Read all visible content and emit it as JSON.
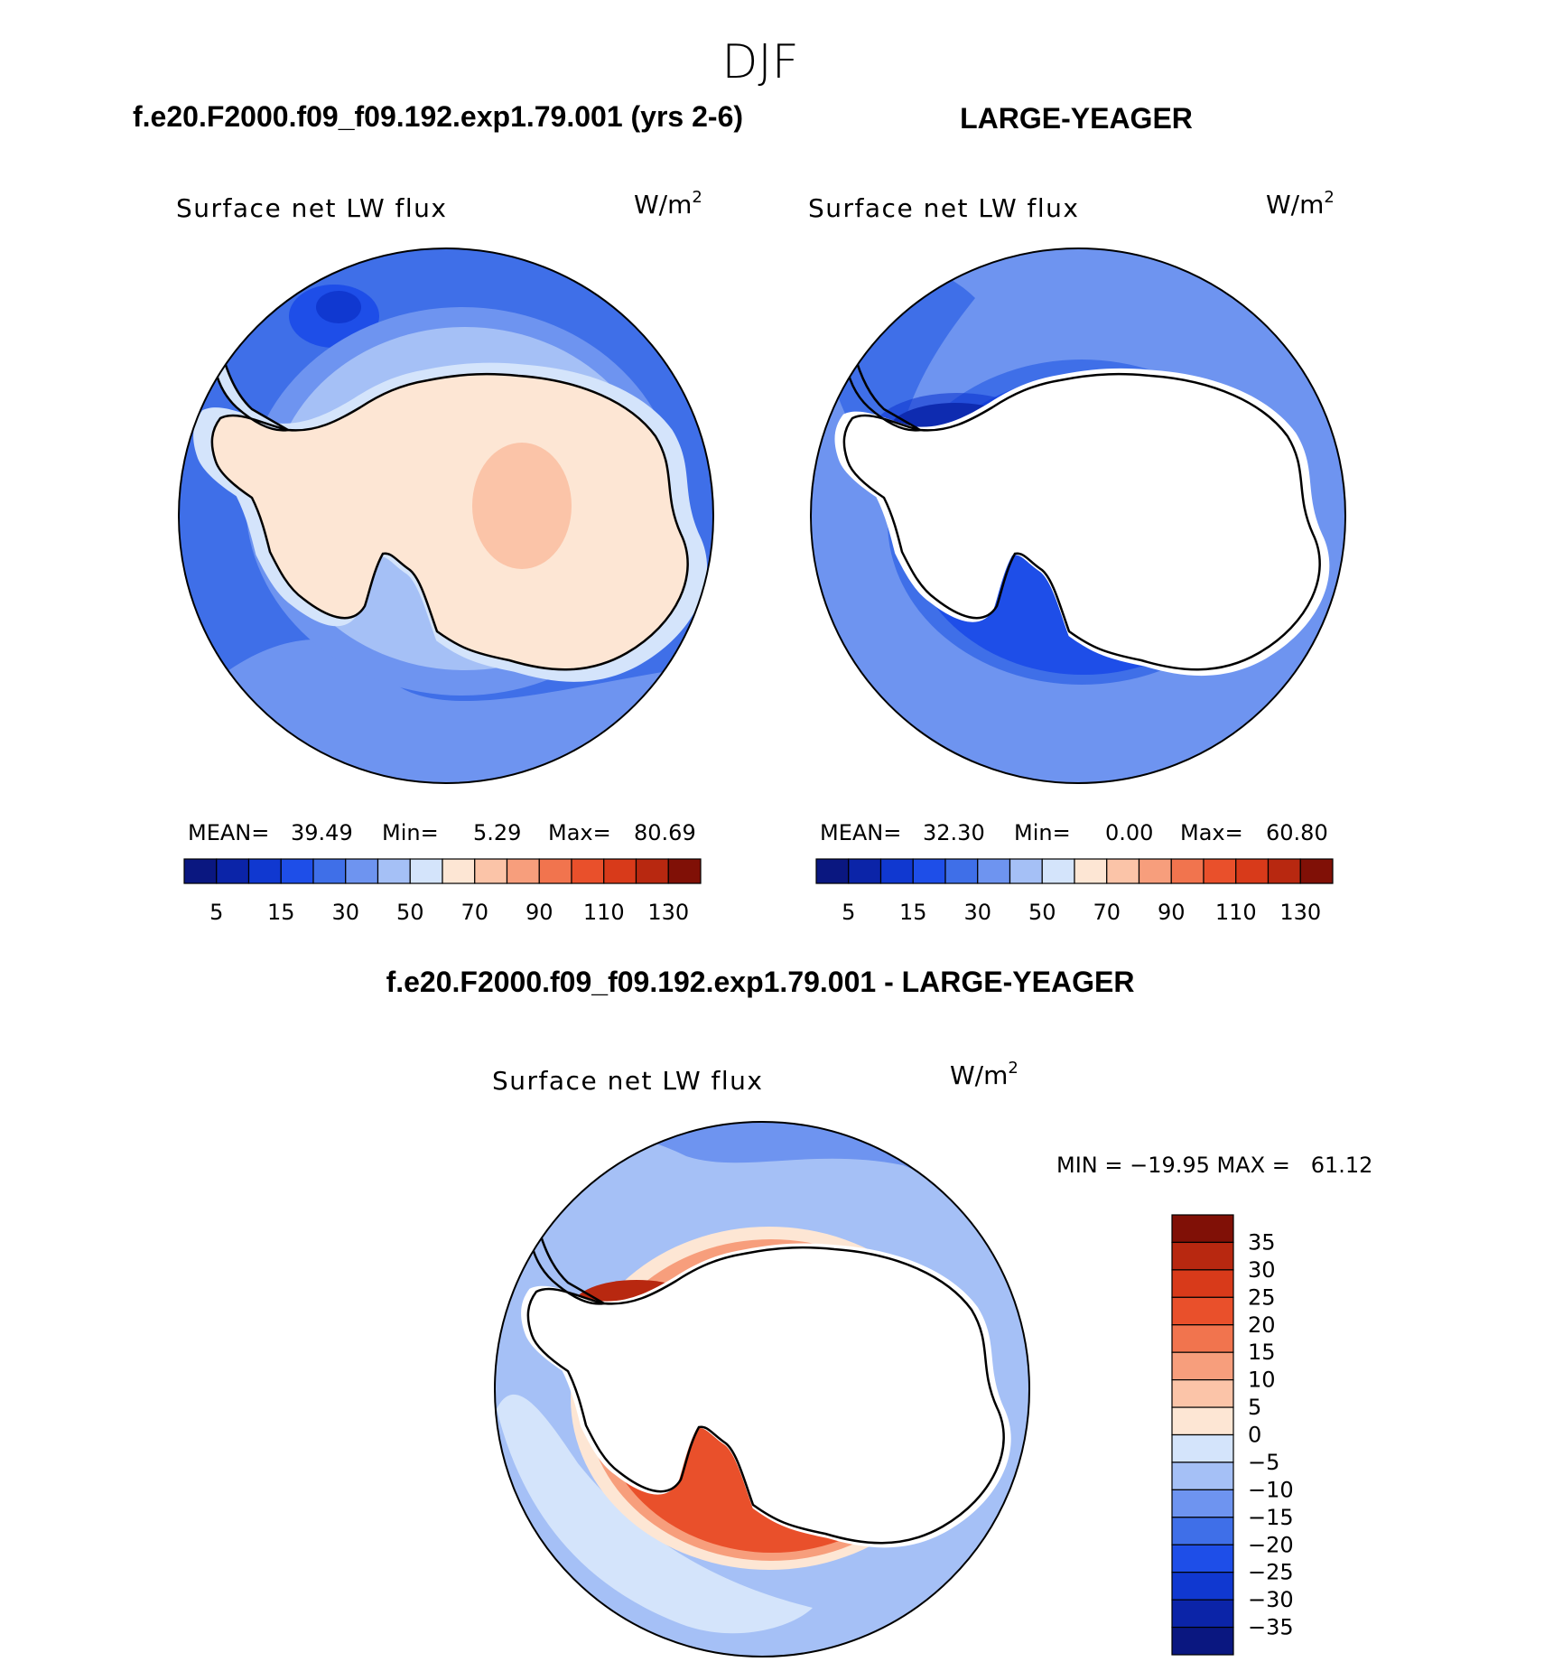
{
  "figure": {
    "season": "DJF",
    "left_case": "f.e20.F2000.f09_f09.192.exp1.79.001 (yrs 2-6)",
    "right_case": "LARGE-YEAGER",
    "diff_title": "f.e20.F2000.f09_f09.192.exp1.79.001 - LARGE-YEAGER"
  },
  "panels": [
    {
      "id": "model",
      "variable": "Surface net LW flux",
      "units_base": "W/m",
      "units_exp": "2",
      "stats": {
        "mean_label": "MEAN=",
        "mean": "39.49",
        "min_label": "Min=",
        "min": "5.29",
        "max_label": "Max=",
        "max": "80.69"
      }
    },
    {
      "id": "obs",
      "variable": "Surface net LW flux",
      "units_base": "W/m",
      "units_exp": "2",
      "stats": {
        "mean_label": "MEAN=",
        "mean": "32.30",
        "min_label": "Min=",
        "min": "0.00",
        "max_label": "Max=",
        "max": "60.80"
      }
    },
    {
      "id": "diff",
      "variable": "Surface net LW flux",
      "units_base": "W/m",
      "units_exp": "2",
      "stats_text": "MIN = −19.95 MAX =   61.12"
    }
  ],
  "colorbars": {
    "absolute": {
      "colors": [
        "#0a1780",
        "#0b24a8",
        "#1038d0",
        "#1e4ee8",
        "#3f6fe8",
        "#6e94f0",
        "#a5c0f6",
        "#d4e4fb",
        "#fde6d4",
        "#fbc4a8",
        "#f79e7c",
        "#f1744e",
        "#e9502b",
        "#d83a1a",
        "#b82810",
        "#801006"
      ],
      "labels": [
        "5",
        "15",
        "30",
        "50",
        "70",
        "90",
        "110",
        "130"
      ]
    },
    "difference": {
      "colors": [
        "#0a1780",
        "#0b24a8",
        "#1038d0",
        "#1e4ee8",
        "#3f6fe8",
        "#6e94f0",
        "#a5c0f6",
        "#d4e4fb",
        "#fde6d4",
        "#fbc4a8",
        "#f79e7c",
        "#f1744e",
        "#e9502b",
        "#d83a1a",
        "#b82810",
        "#801006"
      ],
      "labels": [
        "35",
        "30",
        "25",
        "20",
        "15",
        "10",
        "5",
        "0",
        "−5",
        "−10",
        "−15",
        "−20",
        "−25",
        "−30",
        "−35"
      ]
    }
  },
  "map_colors": {
    "ocean_base": "#3f6fe8",
    "ocean_dark": "#1e4ee8",
    "ocean_darker": "#1038d0",
    "ocean_light": "#6e94f0",
    "ocean_lighter": "#a5c0f6",
    "pale_blue": "#d4e4fb",
    "land_warm": "#fde6d4",
    "land_warmer": "#fbc4a8",
    "red1": "#f79e7c",
    "red2": "#f1744e",
    "red3": "#e9502b",
    "red4": "#b82810",
    "masked": "#ffffff",
    "coast": "#000000"
  }
}
